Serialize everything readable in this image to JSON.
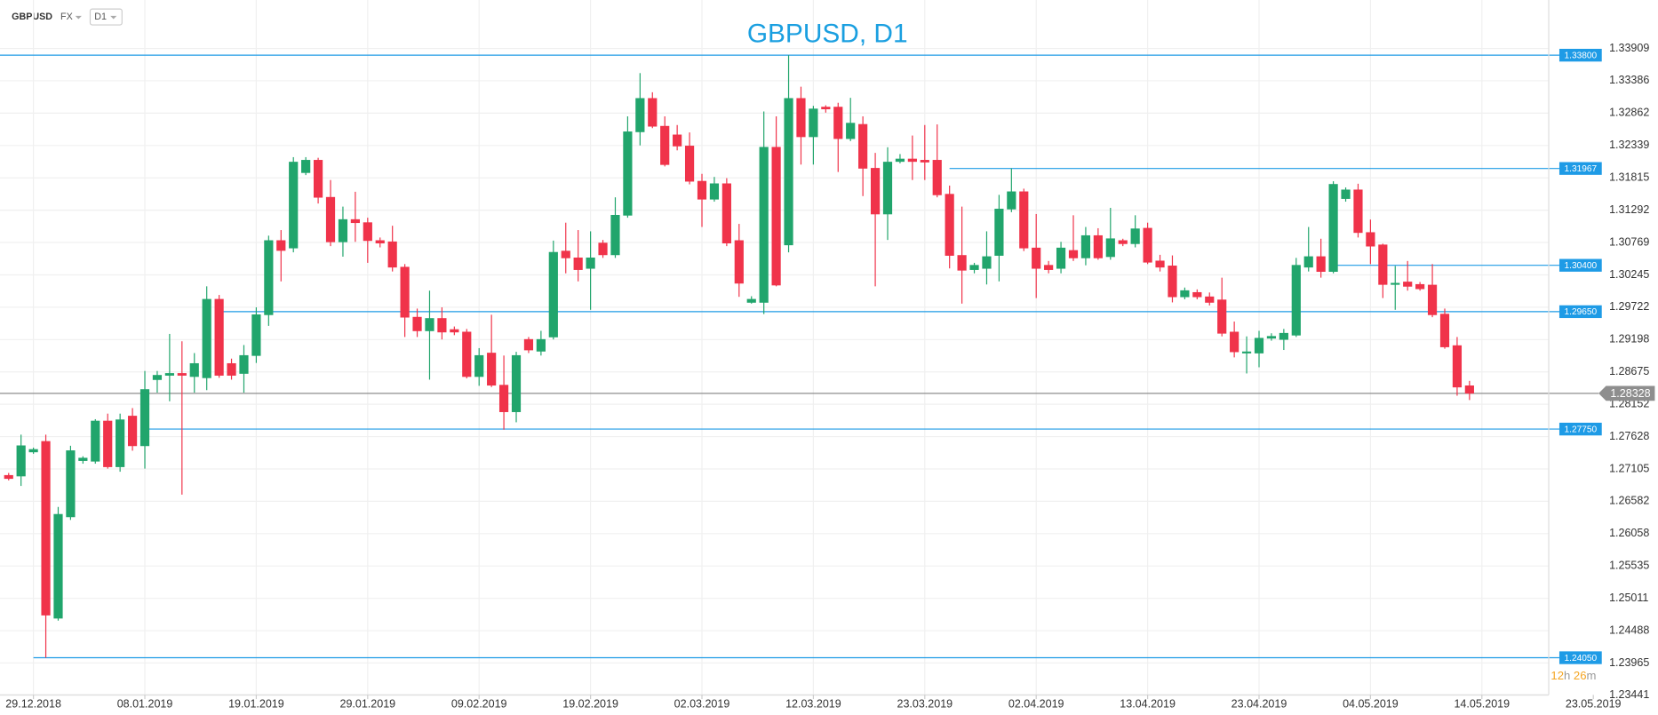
{
  "toolbar": {
    "symbol": "GBPUSD",
    "market": "FX",
    "timeframe": "D1"
  },
  "chart_data": {
    "type": "candlestick",
    "title": "GBPUSD, D1",
    "open": [
      1.27,
      1.2699,
      1.2738,
      1.2755,
      1.2469,
      1.2633,
      1.2724,
      1.2723,
      1.2788,
      1.2714,
      1.2796,
      1.2748,
      1.2855,
      1.2862,
      1.2865,
      1.286,
      1.2858,
      1.2985,
      1.2881,
      1.2865,
      1.2894,
      1.296,
      1.308,
      1.3068,
      1.319,
      1.321,
      1.315,
      1.3078,
      1.3114,
      1.3109,
      1.308,
      1.3078,
      1.3037,
      1.2956,
      1.2934,
      1.2954,
      1.2936,
      1.2932,
      1.286,
      1.2898,
      1.2846,
      1.2803,
      1.292,
      1.2901,
      1.2924,
      1.3063,
      1.3052,
      1.3035,
      1.3076,
      1.3057,
      1.3121,
      1.3256,
      1.331,
      1.3265,
      1.3251,
      1.3233,
      1.3176,
      1.3147,
      1.3172,
      1.308,
      1.298,
      1.298,
      1.3231,
      1.3073,
      1.331,
      1.3248,
      1.3296,
      1.3296,
      1.3245,
      1.3268,
      1.3197,
      1.3123,
      1.3208,
      1.3212,
      1.321,
      1.321,
      1.3155,
      1.3056,
      1.3033,
      1.3035,
      1.3056,
      1.3131,
      1.3159,
      1.3068,
      1.304,
      1.3035,
      1.3064,
      1.3052,
      1.3088,
      1.3054,
      1.308,
      1.3075,
      1.31,
      1.3047,
      1.3039,
      1.2989,
      1.2996,
      1.2989,
      1.2984,
      1.2932,
      1.2898,
      1.2898,
      1.2922,
      1.292,
      1.2927,
      1.3037,
      1.3054,
      1.303,
      1.3148,
      1.3162,
      1.3093,
      1.3073,
      1.3009,
      1.3013,
      1.3009,
      1.3008,
      1.2961,
      1.291,
      1.2845
    ],
    "high": [
      1.2704,
      1.2766,
      1.2745,
      1.2766,
      1.2649,
      1.2748,
      1.2731,
      1.2791,
      1.28,
      1.28,
      1.2809,
      1.2869,
      1.2869,
      1.2929,
      1.2917,
      1.2898,
      1.3006,
      1.2992,
      1.2889,
      1.2911,
      1.2972,
      1.3088,
      1.3097,
      1.3215,
      1.3215,
      1.3214,
      1.3178,
      1.3135,
      1.3159,
      1.3117,
      1.3085,
      1.3104,
      1.3042,
      1.297,
      1.2999,
      1.2972,
      1.2941,
      1.2937,
      1.2906,
      1.296,
      1.2894,
      1.29,
      1.2924,
      1.2934,
      1.308,
      1.3109,
      1.3097,
      1.3095,
      1.3081,
      1.315,
      1.3281,
      1.3351,
      1.332,
      1.3281,
      1.3267,
      1.3255,
      1.3188,
      1.3183,
      1.3181,
      1.3107,
      1.299,
      1.3289,
      1.3281,
      1.338,
      1.3329,
      1.3298,
      1.3299,
      1.3303,
      1.3311,
      1.3281,
      1.3222,
      1.3231,
      1.322,
      1.325,
      1.3267,
      1.3268,
      1.3169,
      1.3135,
      1.3044,
      1.3095,
      1.3154,
      1.3197,
      1.3164,
      1.3123,
      1.3047,
      1.3078,
      1.3121,
      1.3102,
      1.31,
      1.3133,
      1.3083,
      1.3121,
      1.3109,
      1.3057,
      1.3056,
      1.3004,
      1.3001,
      1.2996,
      1.302,
      1.2949,
      1.2925,
      1.2934,
      1.293,
      1.2937,
      1.3052,
      1.3102,
      1.3083,
      1.3176,
      1.3166,
      1.3172,
      1.3114,
      1.3075,
      1.3039,
      1.3047,
      1.3013,
      1.3042,
      1.297,
      1.2924,
      1.2853
    ],
    "low": [
      1.2692,
      1.2683,
      1.2735,
      1.2405,
      1.2465,
      1.2628,
      1.2719,
      1.2719,
      1.2711,
      1.2706,
      1.274,
      1.2711,
      1.2834,
      1.282,
      1.2669,
      1.2834,
      1.2838,
      1.2858,
      1.2855,
      1.2834,
      1.2882,
      1.2942,
      1.3014,
      1.3061,
      1.3186,
      1.314,
      1.3071,
      1.3054,
      1.3078,
      1.3044,
      1.3069,
      1.303,
      1.2924,
      1.2924,
      1.2855,
      1.292,
      1.2927,
      1.2857,
      1.2845,
      1.2843,
      1.2774,
      1.2786,
      1.2898,
      1.2894,
      1.292,
      1.3027,
      1.3014,
      1.2968,
      1.3052,
      1.3052,
      1.3117,
      1.3234,
      1.3262,
      1.32,
      1.3226,
      1.3171,
      1.3102,
      1.3143,
      1.3071,
      1.2989,
      1.2978,
      1.2961,
      1.3006,
      1.3061,
      1.3203,
      1.3203,
      1.3287,
      1.3191,
      1.3241,
      1.3152,
      1.3006,
      1.3081,
      1.3205,
      1.3178,
      1.3178,
      1.315,
      1.3035,
      1.2978,
      1.3027,
      1.3009,
      1.3014,
      1.3126,
      1.3063,
      1.2987,
      1.3027,
      1.3027,
      1.3047,
      1.304,
      1.3049,
      1.3049,
      1.3071,
      1.3069,
      1.3042,
      1.303,
      1.298,
      1.2985,
      1.2985,
      1.2975,
      1.2925,
      1.2891,
      1.2865,
      1.2875,
      1.2918,
      1.2903,
      1.2924,
      1.303,
      1.302,
      1.3027,
      1.3143,
      1.3085,
      1.3042,
      1.2987,
      1.2968,
      1.2999,
      1.2999,
      1.2956,
      1.2905,
      1.2829,
      1.2822
    ],
    "close": [
      1.2695,
      1.2748,
      1.2742,
      1.2474,
      1.2637,
      1.274,
      1.2728,
      1.2788,
      1.2714,
      1.279,
      1.2748,
      1.2839,
      1.2862,
      1.2865,
      1.2862,
      1.2881,
      1.2985,
      1.2862,
      1.2862,
      1.2894,
      1.296,
      1.308,
      1.3064,
      1.3207,
      1.321,
      1.315,
      1.3078,
      1.3114,
      1.3109,
      1.308,
      1.3076,
      1.3037,
      1.2956,
      1.2934,
      1.2954,
      1.2932,
      1.2932,
      1.286,
      1.2894,
      1.2846,
      1.2803,
      1.2894,
      1.2903,
      1.292,
      1.3061,
      1.3052,
      1.3033,
      1.3052,
      1.3057,
      1.3121,
      1.3256,
      1.331,
      1.3265,
      1.3203,
      1.3233,
      1.3176,
      1.3147,
      1.3172,
      1.3076,
      1.3011,
      1.2985,
      1.3231,
      1.3008,
      1.331,
      1.3248,
      1.3293,
      1.3293,
      1.3245,
      1.327,
      1.3197,
      1.3123,
      1.3207,
      1.3212,
      1.3208,
      1.3207,
      1.3154,
      1.3056,
      1.3032,
      1.304,
      1.3054,
      1.3131,
      1.3159,
      1.3068,
      1.3035,
      1.3033,
      1.3068,
      1.3052,
      1.3088,
      1.3052,
      1.3083,
      1.3075,
      1.3099,
      1.3045,
      1.3037,
      1.2989,
      1.2999,
      1.2989,
      1.298,
      1.293,
      1.29,
      1.29,
      1.2922,
      1.2925,
      1.293,
      1.304,
      1.3054,
      1.303,
      1.3171,
      1.3162,
      1.3093,
      1.3071,
      1.3009,
      1.3011,
      1.3006,
      1.3002,
      1.296,
      1.2908,
      1.2843,
      1.2833
    ],
    "up_color": "#21a56c",
    "down_color": "#f0334a",
    "xlim": [
      -0.7,
      124.4
    ],
    "xticks": [
      {
        "value": 2,
        "label": "29.12.2018"
      },
      {
        "value": 11,
        "label": "08.01.2019"
      },
      {
        "value": 20,
        "label": "19.01.2019"
      },
      {
        "value": 29,
        "label": "29.01.2019"
      },
      {
        "value": 38,
        "label": "09.02.2019"
      },
      {
        "value": 47,
        "label": "19.02.2019"
      },
      {
        "value": 56,
        "label": "02.03.2019"
      },
      {
        "value": 65,
        "label": "12.03.2019"
      },
      {
        "value": 74,
        "label": "23.03.2019"
      },
      {
        "value": 83,
        "label": "02.04.2019"
      },
      {
        "value": 92,
        "label": "13.04.2019"
      },
      {
        "value": 101,
        "label": "23.04.2019"
      },
      {
        "value": 110,
        "label": "04.05.2019"
      },
      {
        "value": 119,
        "label": "14.05.2019"
      },
      {
        "value": 128,
        "label": "23.05.2019"
      }
    ],
    "ylim": [
      1.23441,
      1.34693
    ],
    "yticks": [
      1.33909,
      1.33386,
      1.32862,
      1.32339,
      1.31815,
      1.31292,
      1.30769,
      1.30245,
      1.29722,
      1.29198,
      1.28675,
      1.28152,
      1.27628,
      1.27105,
      1.26582,
      1.26058,
      1.25535,
      1.25011,
      1.24488,
      1.23965,
      1.23441
    ],
    "grid": true,
    "levels": [
      {
        "value": 1.338,
        "label": "1.33800",
        "from": -0.7
      },
      {
        "value": 1.31967,
        "label": "1.31967",
        "from": 76
      },
      {
        "value": 1.304,
        "label": "1.30400",
        "from": 107
      },
      {
        "value": 1.2965,
        "label": "1.29650",
        "from": 17
      },
      {
        "value": 1.2775,
        "label": "1.27750",
        "from": 11
      },
      {
        "value": 1.2405,
        "label": "1.24050",
        "from": 2
      }
    ],
    "level_color": "#1e9be6",
    "last_price": {
      "value": 1.28328,
      "label": "1.28328"
    },
    "last_price_color": "#8e8e8e",
    "countdown": {
      "hours": "12",
      "hours_unit": "h",
      "minutes": "26",
      "minutes_unit": "m"
    }
  }
}
